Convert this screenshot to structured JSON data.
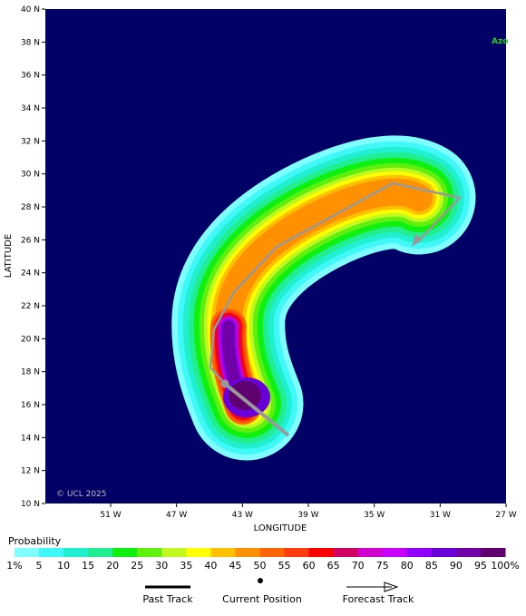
{
  "map": {
    "y_axis_label": "LATITUDE",
    "x_axis_label": "LONGITUDE",
    "lat_ticks": [
      "10 N",
      "12 N",
      "14 N",
      "16 N",
      "18 N",
      "20 N",
      "22 N",
      "24 N",
      "26 N",
      "28 N",
      "30 N",
      "32 N",
      "34 N",
      "36 N",
      "38 N",
      "40 N"
    ],
    "lon_ticks": [
      "51 W",
      "47 W",
      "43 W",
      "39 W",
      "35 W",
      "31 W",
      "27 W"
    ],
    "credit": "© UCL 2025",
    "place_label": "Azo",
    "legend": {
      "title": "Probability",
      "labels": [
        "1%",
        "5",
        "10",
        "15",
        "20",
        "25",
        "30",
        "35",
        "40",
        "45",
        "50",
        "55",
        "60",
        "65",
        "70",
        "75",
        "80",
        "85",
        "90",
        "95",
        "100%"
      ],
      "colors": [
        "#80ffff",
        "#40f8f8",
        "#20f0d0",
        "#20ee90",
        "#10f010",
        "#60f010",
        "#c0f820",
        "#ffff00",
        "#ffc000",
        "#ff9000",
        "#ff6400",
        "#ff3c10",
        "#ff0000",
        "#d00060",
        "#d000d0",
        "#c800ff",
        "#9000ff",
        "#6a00d8",
        "#7000a8",
        "#600070"
      ]
    },
    "track_legend": [
      "Past Track",
      "Current Position",
      "Forecast Track"
    ]
  }
}
